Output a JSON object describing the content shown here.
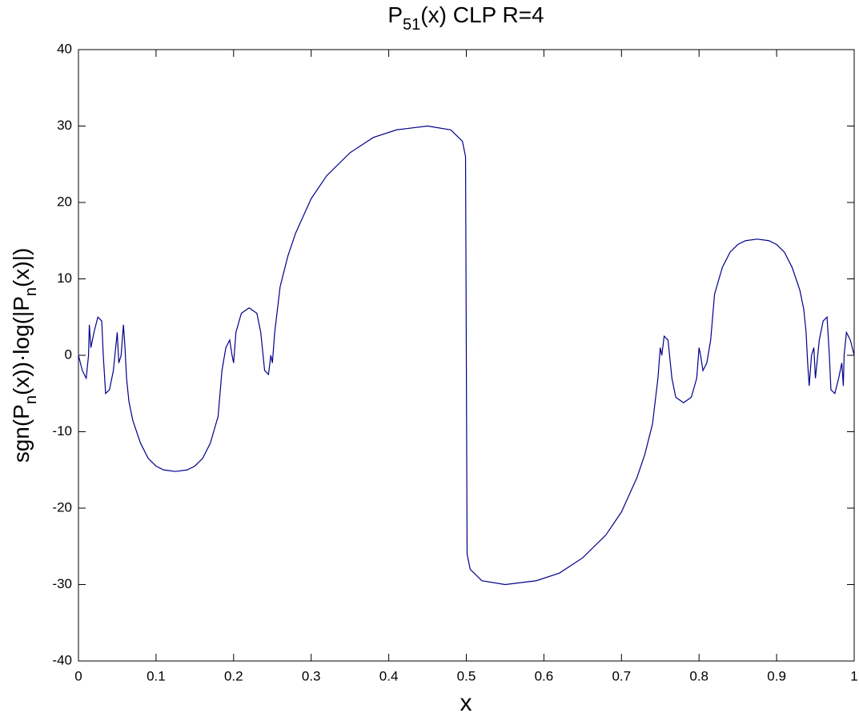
{
  "chart_data": {
    "type": "line",
    "title_parts": [
      "P",
      "51",
      "(x) CLP R=4"
    ],
    "xlabel": "x",
    "ylabel_parts": [
      "sgn(P",
      "n",
      "(x))·log(|P",
      "n",
      "(x)|)"
    ],
    "xlim": [
      0,
      1
    ],
    "ylim": [
      -40,
      40
    ],
    "xticks": [
      0,
      0.1,
      0.2,
      0.3,
      0.4,
      0.5,
      0.6,
      0.7,
      0.8,
      0.9,
      1
    ],
    "yticks": [
      -40,
      -30,
      -20,
      -10,
      0,
      10,
      20,
      30,
      40
    ],
    "grid": false,
    "series": [
      {
        "color": "#00008b",
        "x": [
          0,
          0.005,
          0.01,
          0.013,
          0.014,
          0.016,
          0.02,
          0.025,
          0.03,
          0.032,
          0.035,
          0.04,
          0.045,
          0.048,
          0.05,
          0.052,
          0.055,
          0.058,
          0.06,
          0.062,
          0.065,
          0.07,
          0.08,
          0.09,
          0.1,
          0.11,
          0.125,
          0.14,
          0.15,
          0.16,
          0.17,
          0.18,
          0.185,
          0.19,
          0.195,
          0.198,
          0.2,
          0.203,
          0.21,
          0.22,
          0.23,
          0.235,
          0.24,
          0.245,
          0.248,
          0.25,
          0.253,
          0.26,
          0.27,
          0.28,
          0.3,
          0.32,
          0.35,
          0.38,
          0.41,
          0.45,
          0.48,
          0.495,
          0.499,
          0.5,
          0.501,
          0.505,
          0.52,
          0.55,
          0.59,
          0.62,
          0.65,
          0.68,
          0.7,
          0.72,
          0.73,
          0.74,
          0.747,
          0.75,
          0.752,
          0.755,
          0.76,
          0.765,
          0.77,
          0.78,
          0.79,
          0.797,
          0.8,
          0.802,
          0.805,
          0.81,
          0.815,
          0.82,
          0.83,
          0.84,
          0.85,
          0.86,
          0.875,
          0.89,
          0.9,
          0.91,
          0.92,
          0.93,
          0.935,
          0.938,
          0.94,
          0.942,
          0.945,
          0.948,
          0.95,
          0.952,
          0.955,
          0.96,
          0.965,
          0.968,
          0.97,
          0.975,
          0.98,
          0.984,
          0.986,
          0.987,
          0.99,
          0.995,
          1
        ],
        "values": [
          0,
          -2,
          -3,
          0,
          4,
          1,
          3,
          5,
          4.5,
          0,
          -5,
          -4.5,
          -2,
          1,
          3,
          -1,
          0,
          4,
          1,
          -3,
          -6,
          -8.5,
          -11.5,
          -13.5,
          -14.5,
          -15,
          -15.2,
          -15,
          -14.5,
          -13.5,
          -11.5,
          -8,
          -2,
          1,
          2,
          0,
          -1,
          3,
          5.5,
          6.2,
          5.5,
          3,
          -2,
          -2.5,
          0,
          -1,
          3,
          9,
          13,
          16,
          20.5,
          23.5,
          26.5,
          28.5,
          29.5,
          30,
          29.5,
          28,
          26,
          0,
          -26,
          -28,
          -29.5,
          -30,
          -29.5,
          -28.5,
          -26.5,
          -23.5,
          -20.5,
          -16,
          -13,
          -9,
          -3,
          1,
          0,
          2.5,
          2,
          -3,
          -5.5,
          -6.2,
          -5.5,
          -3,
          1,
          0,
          -2,
          -1,
          2,
          8,
          11.5,
          13.5,
          14.5,
          15,
          15.2,
          15,
          14.5,
          13.5,
          11.5,
          8.5,
          6,
          3,
          -1,
          -4,
          0,
          1,
          -3,
          -1,
          2,
          4.5,
          5,
          0,
          -4.5,
          -5,
          -3,
          -1,
          -4,
          0,
          3,
          2,
          0
        ]
      }
    ]
  }
}
